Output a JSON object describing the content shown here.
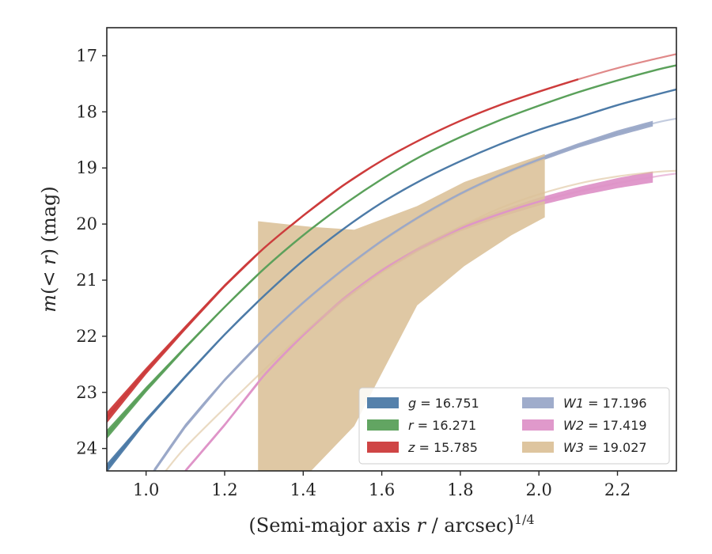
{
  "chart_data": {
    "type": "line",
    "xlabel": "(Semi-major axis r / arcsec)^1/4",
    "ylabel": "m(< r) (mag)",
    "xlim": [
      0.9,
      2.35
    ],
    "ylim": [
      24.4,
      16.5
    ],
    "y_inverted": true,
    "grid": false,
    "legend_position": "lower-right",
    "x_ticks": [
      1.0,
      1.2,
      1.4,
      1.6,
      1.8,
      2.0,
      2.2
    ],
    "x_tick_labels": [
      "1.0",
      "1.2",
      "1.4",
      "1.6",
      "1.8",
      "2.0",
      "2.2"
    ],
    "y_ticks": [
      17,
      18,
      19,
      20,
      21,
      22,
      23,
      24
    ],
    "y_tick_labels": [
      "17",
      "18",
      "19",
      "20",
      "21",
      "22",
      "23",
      "24"
    ],
    "series": [
      {
        "name": "g = 16.751",
        "label_symbol": "g",
        "label_value": "16.751",
        "color": "#4c7aa6",
        "x": [
          0.9,
          1.0,
          1.1,
          1.2,
          1.3,
          1.4,
          1.5,
          1.6,
          1.7,
          1.8,
          1.9,
          2.0,
          2.1,
          2.2,
          2.3,
          2.35
        ],
        "y": [
          24.35,
          23.5,
          22.72,
          21.97,
          21.28,
          20.65,
          20.1,
          19.62,
          19.22,
          18.88,
          18.58,
          18.32,
          18.1,
          17.88,
          17.69,
          17.6
        ],
        "band_halfwidth": [
          0.08,
          0.04,
          0.03,
          0.02,
          0.02,
          0.02,
          0.01,
          0.01,
          0.01,
          0.01,
          0.01,
          0.01,
          0.01,
          0.01,
          0.01,
          0.01
        ],
        "data_xmax": 2.35
      },
      {
        "name": "r = 16.271",
        "label_symbol": "r",
        "label_value": "16.271",
        "color": "#5aa05a",
        "x": [
          0.9,
          1.0,
          1.1,
          1.2,
          1.3,
          1.4,
          1.5,
          1.6,
          1.7,
          1.8,
          1.9,
          2.0,
          2.1,
          2.2,
          2.3,
          2.35
        ],
        "y": [
          23.75,
          22.95,
          22.2,
          21.48,
          20.8,
          20.2,
          19.67,
          19.2,
          18.79,
          18.45,
          18.15,
          17.89,
          17.65,
          17.44,
          17.25,
          17.17
        ],
        "band_halfwidth": [
          0.08,
          0.05,
          0.03,
          0.02,
          0.02,
          0.02,
          0.01,
          0.01,
          0.01,
          0.01,
          0.01,
          0.01,
          0.01,
          0.01,
          0.01,
          0.01
        ],
        "data_xmax": 2.35
      },
      {
        "name": "z = 15.785",
        "label_symbol": "z",
        "label_value": "15.785",
        "color": "#cc3b3b",
        "x": [
          0.9,
          1.0,
          1.1,
          1.2,
          1.3,
          1.4,
          1.5,
          1.6,
          1.7,
          1.8,
          1.9,
          2.0,
          2.1,
          2.2,
          2.3,
          2.35
        ],
        "y": [
          23.45,
          22.62,
          21.85,
          21.1,
          20.43,
          19.85,
          19.32,
          18.87,
          18.49,
          18.16,
          17.88,
          17.64,
          17.42,
          17.22,
          17.05,
          16.97
        ],
        "band_halfwidth": [
          0.1,
          0.06,
          0.04,
          0.03,
          0.02,
          0.02,
          0.02,
          0.01,
          0.01,
          0.01,
          0.01,
          0.01,
          0.01,
          0.01,
          0.01,
          0.01
        ],
        "data_xmax": 2.1
      },
      {
        "name": "W1 = 17.196",
        "label_symbol": "W1",
        "label_value": "17.196",
        "color": "#9aa8c8",
        "x": [
          1.02,
          1.1,
          1.2,
          1.3,
          1.4,
          1.5,
          1.6,
          1.7,
          1.8,
          1.9,
          2.0,
          2.1,
          2.2,
          2.3,
          2.35
        ],
        "y": [
          24.4,
          23.6,
          22.78,
          22.05,
          21.4,
          20.82,
          20.3,
          19.85,
          19.46,
          19.13,
          18.85,
          18.6,
          18.38,
          18.19,
          18.12
        ],
        "band_halfwidth": [
          0.04,
          0.04,
          0.03,
          0.03,
          0.03,
          0.03,
          0.03,
          0.03,
          0.03,
          0.03,
          0.04,
          0.04,
          0.05,
          0.05,
          0.05
        ],
        "data_xmax": 2.29
      },
      {
        "name": "W2 = 17.419",
        "label_symbol": "W2",
        "label_value": "17.419",
        "color": "#de94c8",
        "x": [
          1.1,
          1.2,
          1.3,
          1.4,
          1.5,
          1.6,
          1.7,
          1.8,
          1.9,
          2.0,
          2.1,
          2.2,
          2.3,
          2.35
        ],
        "y": [
          24.4,
          23.58,
          22.7,
          21.98,
          21.35,
          20.83,
          20.42,
          20.08,
          19.82,
          19.6,
          19.42,
          19.27,
          19.15,
          19.1
        ],
        "band_halfwidth": [
          0.03,
          0.03,
          0.03,
          0.03,
          0.04,
          0.04,
          0.04,
          0.05,
          0.06,
          0.07,
          0.08,
          0.09,
          0.1,
          0.1
        ],
        "data_xmax": 2.29
      },
      {
        "name": "W3 = 19.027",
        "label_symbol": "W3",
        "label_value": "19.027",
        "color": "#dcc29a",
        "x": [
          1.05,
          1.1,
          1.2,
          1.3,
          1.4,
          1.5,
          1.6,
          1.7,
          1.8,
          1.9,
          2.0,
          2.1,
          2.2,
          2.3,
          2.35
        ],
        "y": [
          24.4,
          23.98,
          23.28,
          22.6,
          21.95,
          21.36,
          20.86,
          20.42,
          20.05,
          19.72,
          19.47,
          19.28,
          19.15,
          19.07,
          19.05
        ],
        "band_x": [
          1.285,
          1.42,
          1.53,
          1.69,
          1.81,
          1.93,
          2.015
        ],
        "band_upper": [
          19.95,
          20.05,
          20.1,
          19.68,
          19.25,
          18.95,
          18.75
        ],
        "band_lower": [
          24.4,
          24.4,
          23.6,
          21.45,
          20.75,
          20.2,
          19.88
        ],
        "data_xmin": 1.285,
        "data_xmax": 2.015
      }
    ]
  }
}
